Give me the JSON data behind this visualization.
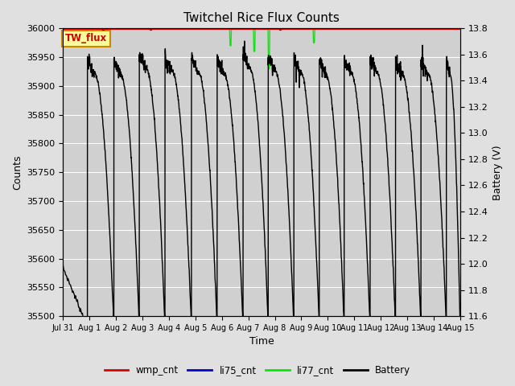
{
  "title": "Twitchel Rice Flux Counts",
  "xlabel": "Time",
  "ylabel_left": "Counts",
  "ylabel_right": "Battery (V)",
  "ylim_left": [
    35500,
    36000
  ],
  "ylim_right": [
    11.6,
    13.8
  ],
  "yticks_left": [
    35500,
    35550,
    35600,
    35650,
    35700,
    35750,
    35800,
    35850,
    35900,
    35950,
    36000
  ],
  "yticks_right": [
    11.6,
    11.8,
    12.0,
    12.2,
    12.4,
    12.6,
    12.8,
    13.0,
    13.2,
    13.4,
    13.6,
    13.8
  ],
  "bg_color": "#e0e0e0",
  "plot_bg_color": "#d0d0d0",
  "grid_color": "#ffffff",
  "annotation_text": "TW_flux",
  "annotation_color": "#cc0000",
  "annotation_bg": "#ffff99",
  "annotation_border": "#cc8800",
  "day_names": [
    "Jul 31",
    "Aug 1",
    "Aug 2",
    "Aug 3",
    "Aug 4",
    "Aug 5",
    "Aug 6",
    "Aug 7",
    "Aug 8",
    "Aug 9",
    "Aug 10",
    "Aug 11",
    "Aug 12",
    "Aug 13",
    "Aug 14",
    "Aug 15"
  ],
  "n_days": 15
}
